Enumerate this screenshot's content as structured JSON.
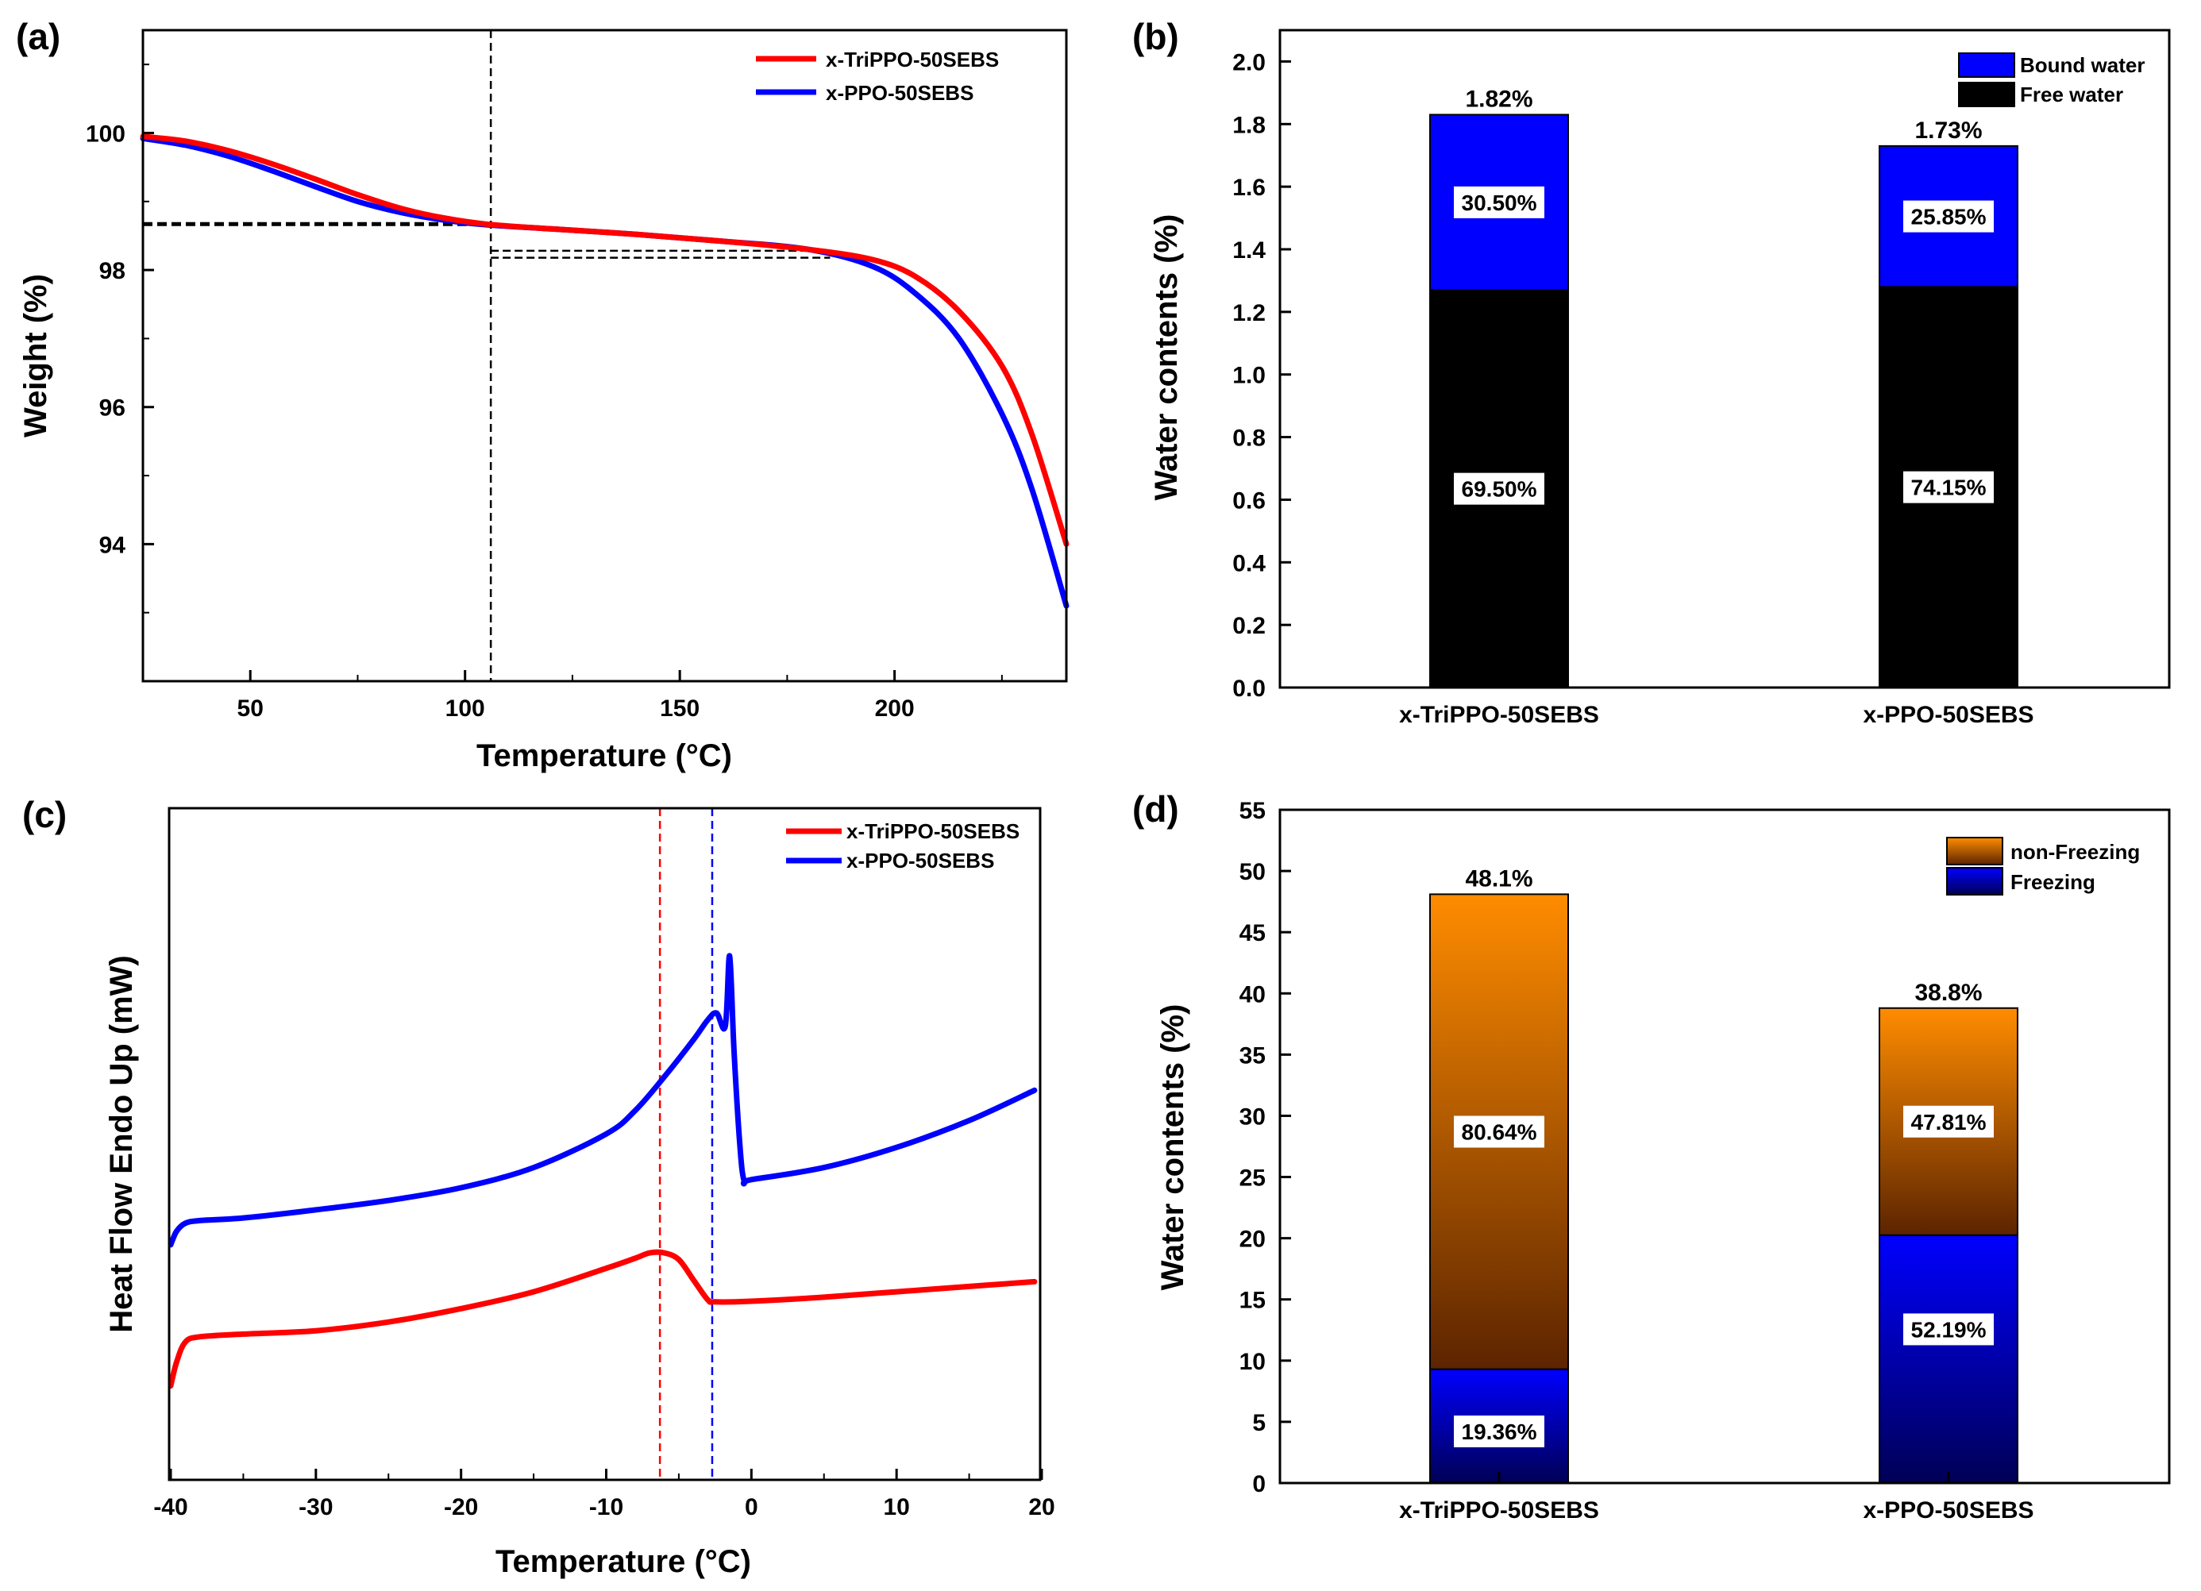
{
  "chart_data": [
    {
      "panel": "(a)",
      "type": "line",
      "xlabel": "Temperature (°C)",
      "ylabel": "Weight (%)",
      "xlim": [
        25,
        240
      ],
      "ylim": [
        92,
        101.5
      ],
      "xticks": [
        50,
        100,
        150,
        200
      ],
      "yticks": [
        94,
        96,
        98,
        100
      ],
      "legend_position": "top-right",
      "series": [
        {
          "name": "x-TriPPO-50SEBS",
          "color": "#ff0000",
          "x": [
            25,
            35,
            45,
            55,
            65,
            75,
            85,
            95,
            105,
            120,
            140,
            160,
            180,
            195,
            205,
            215,
            225,
            232,
            240
          ],
          "y": [
            99.95,
            99.88,
            99.74,
            99.55,
            99.33,
            99.1,
            98.9,
            98.76,
            98.67,
            98.6,
            98.52,
            98.42,
            98.3,
            98.15,
            97.9,
            97.4,
            96.6,
            95.6,
            94.0
          ]
        },
        {
          "name": "x-PPO-50SEBS",
          "color": "#0000ff",
          "x": [
            25,
            35,
            45,
            55,
            65,
            75,
            85,
            95,
            105,
            120,
            140,
            160,
            180,
            195,
            205,
            215,
            225,
            232,
            240
          ],
          "y": [
            99.92,
            99.82,
            99.66,
            99.45,
            99.22,
            99.0,
            98.84,
            98.73,
            98.66,
            98.6,
            98.52,
            98.42,
            98.3,
            98.05,
            97.65,
            97.0,
            95.9,
            94.8,
            93.1
          ]
        }
      ],
      "guides": {
        "vertical_x": 106,
        "horizontal_y": [
          98.67,
          98.28,
          98.18
        ],
        "horizontal_x_start": 106,
        "horizontal_x_end": 185
      }
    },
    {
      "panel": "(b)",
      "type": "bar",
      "stacked": true,
      "xlabel": "",
      "ylabel": "Water contents (%)",
      "ylim": [
        0,
        2.1
      ],
      "yticks": [
        0.0,
        0.2,
        0.4,
        0.6,
        0.8,
        1.0,
        1.2,
        1.4,
        1.6,
        1.8,
        2.0
      ],
      "categories": [
        "x-TriPPO-50SEBS",
        "x-PPO-50SEBS"
      ],
      "legend_position": "top-right",
      "series": [
        {
          "name": "Free water",
          "color": "#000000",
          "values": [
            1.27,
            1.28
          ],
          "labels": [
            "69.50%",
            "74.15%"
          ]
        },
        {
          "name": "Bound water",
          "color": "#0000ff",
          "values": [
            0.56,
            0.45
          ],
          "labels": [
            "30.50%",
            "25.85%"
          ]
        }
      ],
      "totals": [
        1.82,
        1.73
      ],
      "total_labels": [
        "1.82%",
        "1.73%"
      ]
    },
    {
      "panel": "(c)",
      "type": "line",
      "xlabel": "Temperature (°C)",
      "ylabel": "Heat Flow Endo Up (mW)",
      "xlim": [
        -40,
        20
      ],
      "ylim": [
        0,
        10
      ],
      "xticks": [
        -40,
        -30,
        -20,
        -10,
        0,
        10,
        20
      ],
      "yticks": [],
      "legend_position": "top-right",
      "series": [
        {
          "name": "x-TriPPO-50SEBS",
          "color": "#ff0000",
          "x": [
            -40,
            -39.6,
            -39,
            -38,
            -35,
            -30,
            -25,
            -20,
            -15,
            -10,
            -8,
            -7,
            -6,
            -5,
            -4,
            -3,
            -2.5,
            0,
            5,
            10,
            15,
            19.5
          ],
          "y": [
            1.4,
            1.75,
            2.05,
            2.13,
            2.17,
            2.22,
            2.35,
            2.55,
            2.8,
            3.15,
            3.3,
            3.38,
            3.38,
            3.28,
            2.98,
            2.68,
            2.65,
            2.66,
            2.72,
            2.8,
            2.88,
            2.95
          ]
        },
        {
          "name": "x-PPO-50SEBS",
          "color": "#0000ff",
          "x": [
            -40,
            -39.6,
            -39,
            -38,
            -35,
            -30,
            -25,
            -20,
            -15,
            -10,
            -8,
            -6,
            -4,
            -3,
            -2.4,
            -1.8,
            -1.5,
            -1.2,
            -0.8,
            -0.5,
            0,
            5,
            10,
            15,
            19.5
          ],
          "y": [
            3.5,
            3.7,
            3.82,
            3.86,
            3.9,
            4.02,
            4.16,
            4.35,
            4.65,
            5.15,
            5.5,
            6.0,
            6.55,
            6.85,
            6.95,
            6.75,
            7.8,
            6.4,
            5.0,
            4.45,
            4.47,
            4.65,
            4.95,
            5.35,
            5.8
          ]
        }
      ],
      "guides": {
        "red_vertical_x": -6.3,
        "blue_vertical_x": -2.7
      }
    },
    {
      "panel": "(d)",
      "type": "bar",
      "stacked": true,
      "xlabel": "",
      "ylabel": "Water contents (%)",
      "ylim": [
        0,
        55
      ],
      "yticks": [
        0,
        5,
        10,
        15,
        20,
        25,
        30,
        35,
        40,
        45,
        50,
        55
      ],
      "categories": [
        "x-TriPPO-50SEBS",
        "x-PPO-50SEBS"
      ],
      "legend_position": "top-right",
      "series": [
        {
          "name": "Freezing",
          "color": "#0000ff",
          "values": [
            9.3,
            20.25
          ],
          "labels": [
            "19.36%",
            "52.19%"
          ]
        },
        {
          "name": "non-Freezing",
          "color": "#ff8c00",
          "values": [
            38.8,
            18.55
          ],
          "labels": [
            "80.64%",
            "47.81%"
          ]
        }
      ],
      "totals": [
        48.1,
        38.8
      ],
      "total_labels": [
        "48.1%",
        "38.8%"
      ]
    }
  ]
}
